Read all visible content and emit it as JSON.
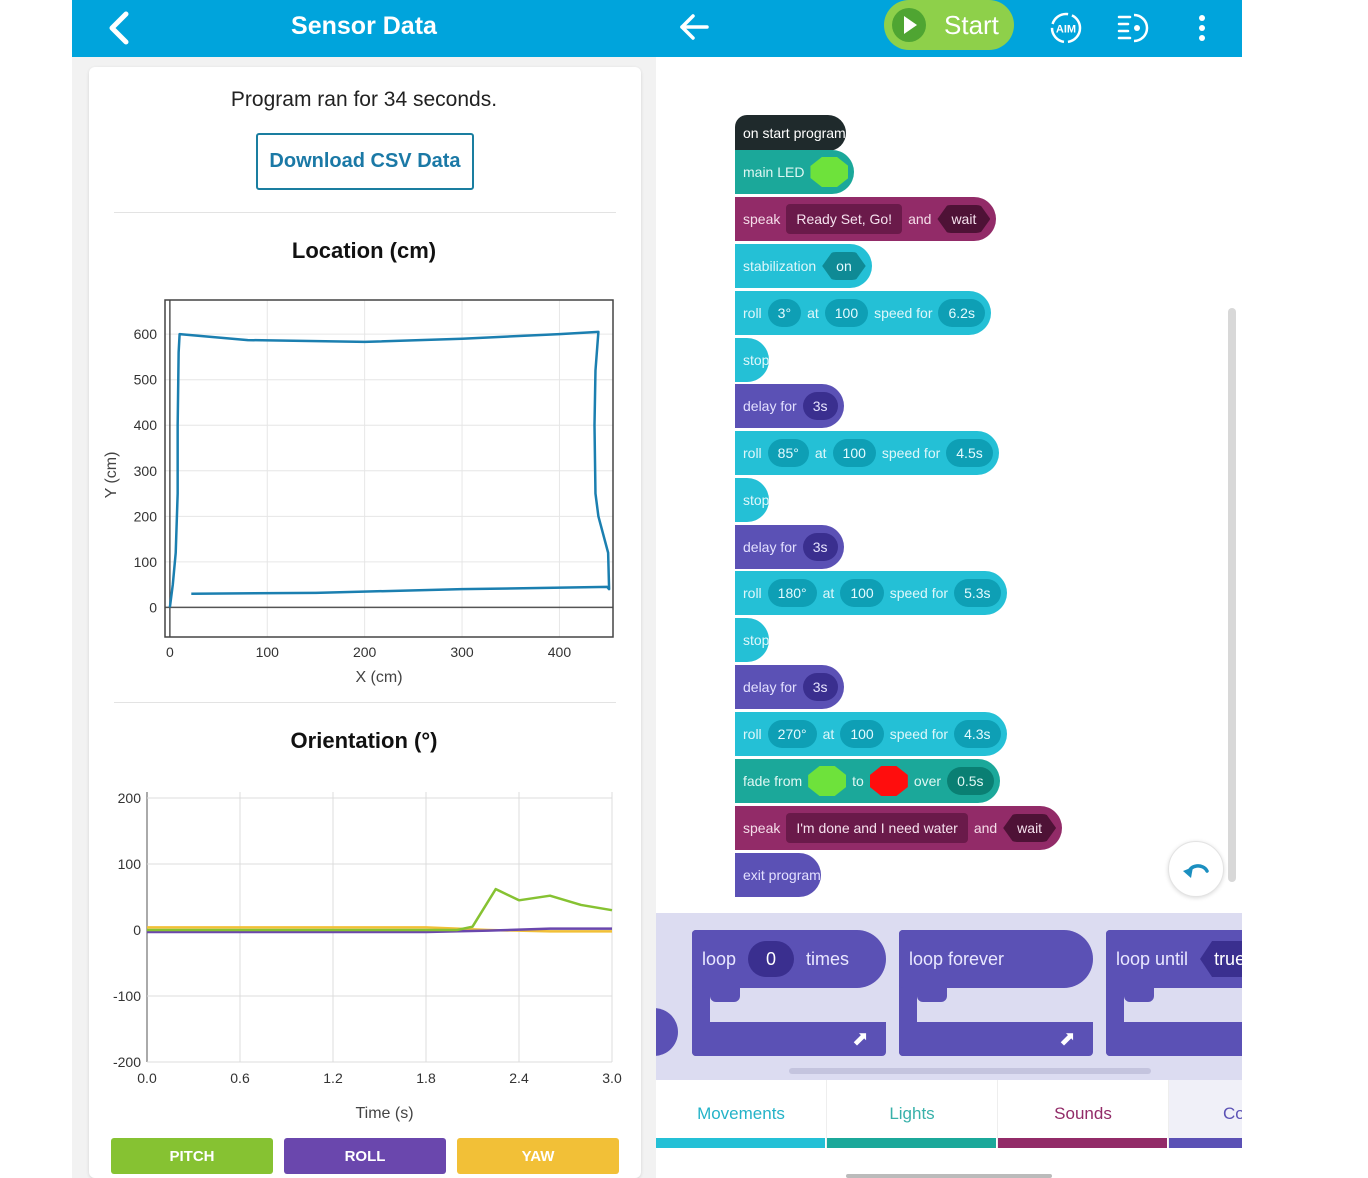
{
  "left": {
    "title": "Sensor Data",
    "run_text": "Program ran for 34 seconds.",
    "download_label": "Download CSV Data",
    "location_title": "Location (cm)",
    "orientation_title": "Orientation (°)",
    "legend": [
      {
        "label": "PITCH",
        "color": "#86c232"
      },
      {
        "label": "ROLL",
        "color": "#6a47ad"
      },
      {
        "label": "YAW",
        "color": "#f2c037"
      }
    ]
  },
  "chart_data": [
    {
      "type": "line",
      "title": "Location (cm)",
      "xlabel": "X (cm)",
      "ylabel": "Y (cm)",
      "xlim": [
        -5,
        455
      ],
      "ylim": [
        -65,
        675
      ],
      "xticks": [
        0,
        100,
        200,
        300,
        400
      ],
      "yticks": [
        0,
        100,
        200,
        300,
        400,
        500,
        600
      ],
      "grid": true,
      "series": [
        {
          "color": "#1b7fb0",
          "x": [
            0,
            3,
            6,
            8,
            8,
            9,
            10,
            80,
            200,
            300,
            400,
            440,
            437,
            436,
            437,
            440,
            450,
            451,
            449,
            300,
            150,
            22
          ],
          "y": [
            0,
            50,
            120,
            250,
            400,
            560,
            600,
            587,
            583,
            590,
            600,
            605,
            520,
            400,
            250,
            200,
            120,
            40,
            45,
            40,
            32,
            30
          ]
        }
      ]
    },
    {
      "type": "line",
      "title": "Orientation (°)",
      "xlabel": "Time (s)",
      "ylabel": "",
      "xlim": [
        0,
        3.0
      ],
      "ylim": [
        -200,
        200
      ],
      "xticks": [
        "0.0",
        "0.6",
        "1.2",
        "1.8",
        "2.4",
        "3.0"
      ],
      "yticks": [
        200,
        100,
        0,
        -100,
        -200
      ],
      "grid": true,
      "legend": "bottom",
      "series": [
        {
          "name": "PITCH",
          "color": "#86c232",
          "x": [
            0,
            1.8,
            2.0,
            2.1,
            2.25,
            2.4,
            2.6,
            2.8,
            3.0
          ],
          "y": [
            0,
            0,
            0,
            5,
            62,
            45,
            52,
            38,
            30
          ]
        },
        {
          "name": "ROLL",
          "color": "#6a47ad",
          "x": [
            0,
            1.8,
            2.2,
            2.6,
            3.0
          ],
          "y": [
            -3,
            -3,
            -1,
            2,
            2
          ]
        },
        {
          "name": "YAW",
          "color": "#f2c037",
          "x": [
            0,
            1.8,
            2.0,
            2.2,
            2.6,
            3.0
          ],
          "y": [
            4,
            4,
            2,
            0,
            -2,
            -2
          ]
        }
      ]
    }
  ],
  "right": {
    "start_label": "Start",
    "aim_label": "AIM",
    "blocks": [
      {
        "type": "event",
        "parts": [
          {
            "t": "label",
            "v": "on start program"
          }
        ]
      },
      {
        "type": "light",
        "parts": [
          {
            "t": "label",
            "v": "main LED"
          },
          {
            "t": "swatch",
            "color": "#6ee23b"
          }
        ]
      },
      {
        "type": "sound",
        "parts": [
          {
            "t": "label",
            "v": "speak"
          },
          {
            "t": "text",
            "v": "Ready Set, Go!"
          },
          {
            "t": "label",
            "v": "and"
          },
          {
            "t": "bool",
            "v": "wait"
          }
        ]
      },
      {
        "type": "move",
        "parts": [
          {
            "t": "label",
            "v": "stabilization"
          },
          {
            "t": "dark",
            "v": "on"
          }
        ]
      },
      {
        "type": "move",
        "parts": [
          {
            "t": "label",
            "v": "roll"
          },
          {
            "t": "pill",
            "v": "3°"
          },
          {
            "t": "label",
            "v": "at"
          },
          {
            "t": "pill",
            "v": "100"
          },
          {
            "t": "label",
            "v": "speed for"
          },
          {
            "t": "pill",
            "v": "6.2s"
          }
        ]
      },
      {
        "type": "move",
        "parts": [
          {
            "t": "label",
            "v": "stop"
          }
        ]
      },
      {
        "type": "control",
        "parts": [
          {
            "t": "label",
            "v": "delay for"
          },
          {
            "t": "pill",
            "v": "3s"
          }
        ]
      },
      {
        "type": "move",
        "parts": [
          {
            "t": "label",
            "v": "roll"
          },
          {
            "t": "pill",
            "v": "85°"
          },
          {
            "t": "label",
            "v": "at"
          },
          {
            "t": "pill",
            "v": "100"
          },
          {
            "t": "label",
            "v": "speed for"
          },
          {
            "t": "pill",
            "v": "4.5s"
          }
        ]
      },
      {
        "type": "move",
        "parts": [
          {
            "t": "label",
            "v": "stop"
          }
        ]
      },
      {
        "type": "control",
        "parts": [
          {
            "t": "label",
            "v": "delay for"
          },
          {
            "t": "pill",
            "v": "3s"
          }
        ]
      },
      {
        "type": "move",
        "parts": [
          {
            "t": "label",
            "v": "roll"
          },
          {
            "t": "pill",
            "v": "180°"
          },
          {
            "t": "label",
            "v": "at"
          },
          {
            "t": "pill",
            "v": "100"
          },
          {
            "t": "label",
            "v": "speed for"
          },
          {
            "t": "pill",
            "v": "5.3s"
          }
        ]
      },
      {
        "type": "move",
        "parts": [
          {
            "t": "label",
            "v": "stop"
          }
        ]
      },
      {
        "type": "control",
        "parts": [
          {
            "t": "label",
            "v": "delay for"
          },
          {
            "t": "pill",
            "v": "3s"
          }
        ]
      },
      {
        "type": "move",
        "parts": [
          {
            "t": "label",
            "v": "roll"
          },
          {
            "t": "pill",
            "v": "270°"
          },
          {
            "t": "label",
            "v": "at"
          },
          {
            "t": "pill",
            "v": "100"
          },
          {
            "t": "label",
            "v": "speed for"
          },
          {
            "t": "pill",
            "v": "4.3s"
          }
        ]
      },
      {
        "type": "light",
        "parts": [
          {
            "t": "label",
            "v": "fade from"
          },
          {
            "t": "swatch",
            "color": "#6ee23b"
          },
          {
            "t": "label",
            "v": "to"
          },
          {
            "t": "swatch",
            "color": "#ff0d0d"
          },
          {
            "t": "label",
            "v": "over"
          },
          {
            "t": "pill",
            "v": "0.5s"
          }
        ]
      },
      {
        "type": "sound",
        "parts": [
          {
            "t": "label",
            "v": "speak"
          },
          {
            "t": "text",
            "v": "I'm done and I need water"
          },
          {
            "t": "label",
            "v": "and"
          },
          {
            "t": "bool",
            "v": "wait"
          }
        ]
      },
      {
        "type": "control",
        "parts": [
          {
            "t": "label",
            "v": "exit program"
          }
        ]
      }
    ],
    "palette": {
      "loop_times": {
        "label": "loop",
        "value": "0",
        "suffix": "times"
      },
      "loop_forever": {
        "label": "loop forever"
      },
      "loop_until": {
        "label": "loop until",
        "value": "true"
      }
    },
    "tabs": [
      {
        "label": "Movements",
        "color": "#24c0d6",
        "text_color": "#24b3c8"
      },
      {
        "label": "Lights",
        "color": "#1ba89a",
        "text_color": "#38b1aa"
      },
      {
        "label": "Sounds",
        "color": "#922b68",
        "text_color": "#922b68"
      },
      {
        "label": "Co",
        "color": "#5b51b5",
        "text_color": "#5b51b5"
      }
    ]
  }
}
